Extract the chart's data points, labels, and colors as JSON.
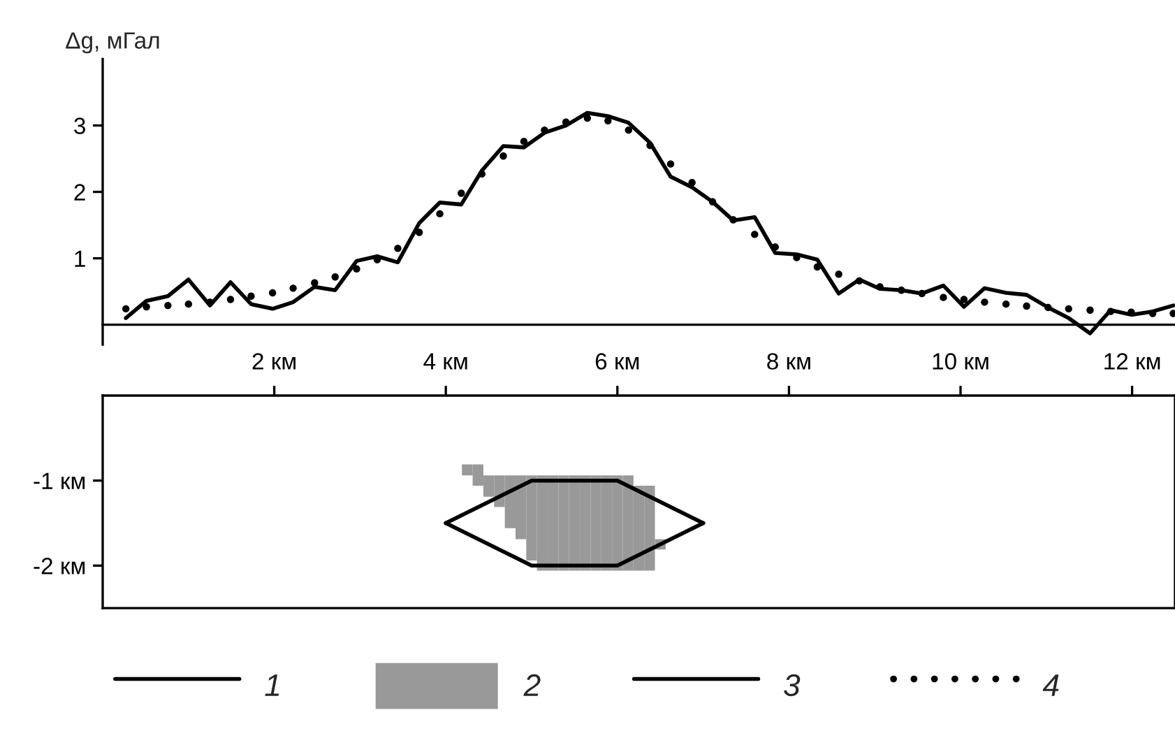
{
  "chart_data": [
    {
      "type": "line",
      "ylabel": "Δg, мГал",
      "xlim": [
        0,
        12.5
      ],
      "ylim": [
        -0.3,
        4
      ],
      "yticks": [
        1,
        2,
        3
      ],
      "tick_labels": "y",
      "legend": "bottom",
      "series": [
        {
          "name": "3",
          "color": "#000000",
          "line_style": "solid",
          "marker": "none",
          "x": [
            0.27,
            0.51,
            0.76,
            1.0,
            1.25,
            1.49,
            1.73,
            1.98,
            2.22,
            2.47,
            2.71,
            2.96,
            3.2,
            3.44,
            3.69,
            3.93,
            4.18,
            4.42,
            4.67,
            4.91,
            5.15,
            5.4,
            5.65,
            5.89,
            6.13,
            6.38,
            6.62,
            6.87,
            7.11,
            7.35,
            7.6,
            7.84,
            8.09,
            8.33,
            8.58,
            8.82,
            9.06,
            9.31,
            9.55,
            9.8,
            10.04,
            10.28,
            10.53,
            10.77,
            11.02,
            11.26,
            11.51,
            11.75,
            11.99,
            12.24,
            12.48
          ],
          "values": [
            0.1,
            0.36,
            0.43,
            0.68,
            0.29,
            0.64,
            0.31,
            0.24,
            0.34,
            0.57,
            0.52,
            0.96,
            1.03,
            0.94,
            1.53,
            1.84,
            1.81,
            2.32,
            2.69,
            2.67,
            2.89,
            3.0,
            3.19,
            3.14,
            3.04,
            2.74,
            2.23,
            2.07,
            1.85,
            1.57,
            1.62,
            1.08,
            1.06,
            0.98,
            0.47,
            0.68,
            0.54,
            0.52,
            0.47,
            0.59,
            0.27,
            0.55,
            0.48,
            0.45,
            0.26,
            0.1,
            -0.13,
            0.22,
            0.15,
            0.2,
            0.29
          ]
        },
        {
          "name": "4",
          "type": "scatter",
          "color": "#000000",
          "marker": "circle",
          "x": [
            0.27,
            0.51,
            0.76,
            1.0,
            1.25,
            1.49,
            1.73,
            1.98,
            2.22,
            2.47,
            2.71,
            2.96,
            3.2,
            3.44,
            3.69,
            3.93,
            4.18,
            4.42,
            4.67,
            4.91,
            5.15,
            5.4,
            5.65,
            5.89,
            6.13,
            6.38,
            6.62,
            6.87,
            7.11,
            7.35,
            7.6,
            7.84,
            8.09,
            8.33,
            8.58,
            8.82,
            9.06,
            9.31,
            9.55,
            9.8,
            10.04,
            10.28,
            10.53,
            10.77,
            11.02,
            11.26,
            11.51,
            11.75,
            11.99,
            12.24,
            12.48
          ],
          "values": [
            0.24,
            0.27,
            0.29,
            0.31,
            0.34,
            0.38,
            0.43,
            0.48,
            0.55,
            0.63,
            0.72,
            0.84,
            0.98,
            1.15,
            1.39,
            1.67,
            1.98,
            2.27,
            2.54,
            2.76,
            2.93,
            3.05,
            3.11,
            3.07,
            2.93,
            2.7,
            2.42,
            2.14,
            1.85,
            1.58,
            1.36,
            1.17,
            1.01,
            0.87,
            0.76,
            0.66,
            0.57,
            0.52,
            0.47,
            0.41,
            0.38,
            0.34,
            0.31,
            0.28,
            0.26,
            0.24,
            0.22,
            0.2,
            0.19,
            0.17,
            0.17
          ]
        }
      ]
    },
    {
      "type": "line",
      "xlim": [
        0,
        12.5
      ],
      "ylim": [
        -2.5,
        0
      ],
      "legend": "bottom",
      "xticks": [
        {
          "value": 2,
          "label": "2 км"
        },
        {
          "value": 4,
          "label": "4 км"
        },
        {
          "value": 6,
          "label": "6 км"
        },
        {
          "value": 8,
          "label": "8 км"
        },
        {
          "value": 10,
          "label": "10 км"
        },
        {
          "value": 12,
          "label": "12 км"
        }
      ],
      "yticks": [
        {
          "value": -1,
          "label": "-1 км"
        },
        {
          "value": -2,
          "label": "-2 км"
        }
      ],
      "series": [
        {
          "name": "1",
          "color": "#000000",
          "line_style": "solid",
          "marker": "none",
          "x": [
            4,
            5,
            6,
            7
          ],
          "values": [
            -1.5,
            -1,
            -1,
            -1.5
          ]
        },
        {
          "color": "#000000",
          "line_style": "solid",
          "marker": "none",
          "x": [
            4,
            5,
            6,
            7
          ],
          "values": [
            -1.5,
            -2,
            -2,
            -1.5
          ]
        },
        {
          "name": "2",
          "type": "bar",
          "color": "#999999",
          "x": [
            4.25,
            4.375,
            4.5,
            4.625,
            4.75,
            4.875,
            5.0,
            5.125,
            5.25,
            5.375,
            5.5,
            5.625,
            5.75,
            5.875,
            6.0,
            6.125,
            6.25,
            6.375,
            6.5
          ],
          "base": [
            -0.94,
            -1.06,
            -1.19,
            -1.31,
            -1.56,
            -1.69,
            -1.94,
            -2.06,
            -2.06,
            -2.06,
            -2.06,
            -2.06,
            -2.06,
            -2.06,
            -2.06,
            -2.06,
            -2.06,
            -2.06,
            -1.81
          ],
          "values": [
            0.13,
            0.25,
            0.25,
            0.37,
            0.62,
            0.75,
            1.0,
            1.12,
            1.12,
            1.12,
            1.12,
            1.12,
            1.12,
            1.12,
            1.12,
            1.12,
            1.0,
            1.0,
            0.12
          ]
        }
      ]
    }
  ]
}
